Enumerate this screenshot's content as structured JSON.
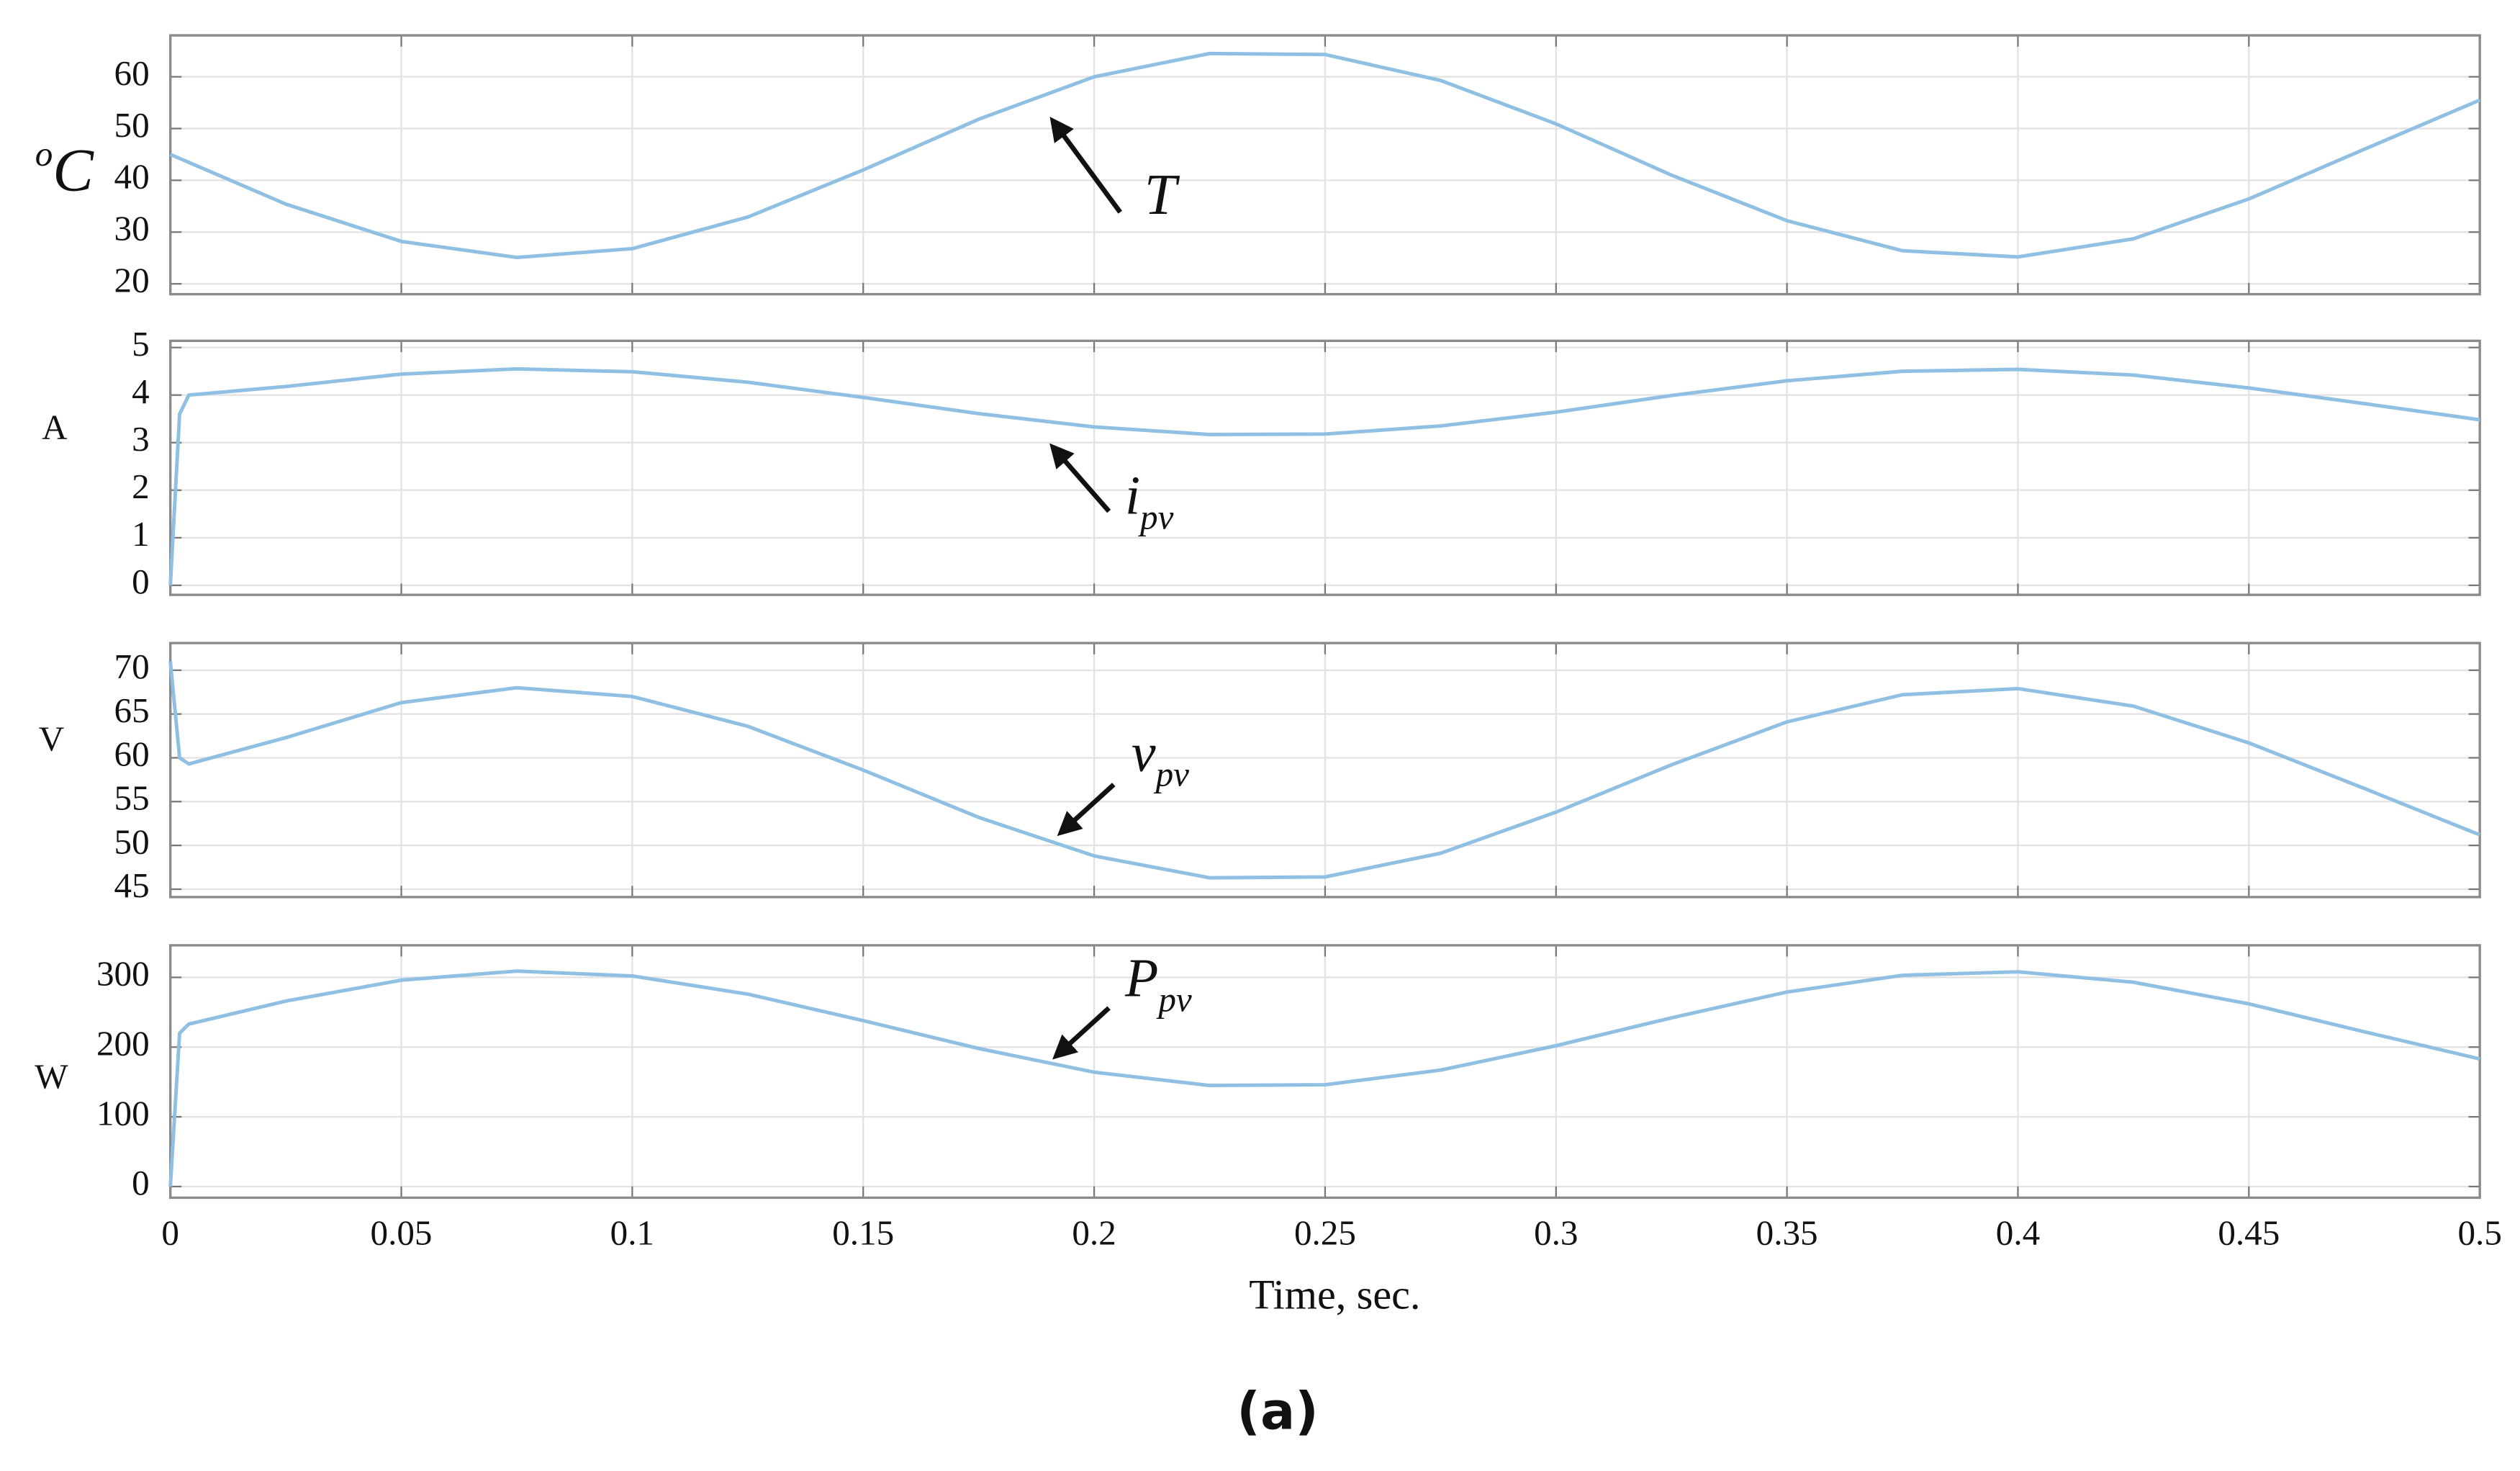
{
  "chart_data": [
    {
      "type": "line",
      "ylabel": {
        "sup": "o",
        "text": "C"
      },
      "annotation": {
        "text": "T"
      },
      "x": [
        0,
        0.025,
        0.05,
        0.075,
        0.1,
        0.125,
        0.15,
        0.175,
        0.2,
        0.225,
        0.25,
        0.275,
        0.3,
        0.325,
        0.35,
        0.375,
        0.4,
        0.425,
        0.45,
        0.475,
        0.5
      ],
      "series": [
        {
          "name": "T",
          "color": "#8fbfe2",
          "values": [
            45,
            35.4,
            28.2,
            25.1,
            26.8,
            32.9,
            42.0,
            51.8,
            60.0,
            64.5,
            64.3,
            59.3,
            50.9,
            41.0,
            32.2,
            26.4,
            25.2,
            28.7,
            36.4,
            46.0,
            55.5
          ]
        }
      ],
      "xlim": [
        0,
        0.5
      ],
      "xticks": [
        0,
        0.05,
        0.1,
        0.15,
        0.2,
        0.25,
        0.3,
        0.35,
        0.4,
        0.45,
        0.5
      ],
      "ylim": [
        18,
        68
      ],
      "yticks": [
        20,
        30,
        40,
        50,
        60
      ],
      "grid": true,
      "show_xtick_labels": false
    },
    {
      "type": "line",
      "ylabel": {
        "text": "A"
      },
      "annotation": {
        "text": "i",
        "sub": "pv"
      },
      "x": [
        0,
        0.002,
        0.004,
        0.025,
        0.05,
        0.075,
        0.1,
        0.125,
        0.15,
        0.175,
        0.2,
        0.225,
        0.25,
        0.275,
        0.3,
        0.325,
        0.35,
        0.375,
        0.4,
        0.425,
        0.45,
        0.475,
        0.5
      ],
      "series": [
        {
          "name": "ipv",
          "color": "#8fbfe2",
          "values": [
            0,
            3.6,
            4.0,
            4.18,
            4.44,
            4.55,
            4.49,
            4.27,
            3.95,
            3.61,
            3.33,
            3.17,
            3.18,
            3.35,
            3.64,
            3.99,
            4.3,
            4.5,
            4.54,
            4.42,
            4.15,
            3.82,
            3.48
          ]
        }
      ],
      "xlim": [
        0,
        0.5
      ],
      "xticks": [
        0,
        0.05,
        0.1,
        0.15,
        0.2,
        0.25,
        0.3,
        0.35,
        0.4,
        0.45,
        0.5
      ],
      "ylim": [
        -0.2,
        5.14
      ],
      "yticks": [
        0,
        1,
        2,
        3,
        4,
        5
      ],
      "grid": true,
      "show_xtick_labels": false
    },
    {
      "type": "line",
      "ylabel": {
        "text": "V"
      },
      "annotation": {
        "text": "v",
        "sub": "pv"
      },
      "x": [
        0,
        0.002,
        0.004,
        0.025,
        0.05,
        0.075,
        0.1,
        0.125,
        0.15,
        0.175,
        0.2,
        0.225,
        0.25,
        0.275,
        0.3,
        0.325,
        0.35,
        0.375,
        0.4,
        0.425,
        0.45,
        0.475,
        0.5
      ],
      "series": [
        {
          "name": "vpv",
          "color": "#8fbfe2",
          "values": [
            71,
            60,
            59.3,
            62.3,
            66.3,
            68.0,
            67.0,
            63.6,
            58.6,
            53.2,
            48.8,
            46.3,
            46.4,
            49.1,
            53.8,
            59.2,
            64.1,
            67.2,
            67.9,
            65.9,
            61.7,
            56.5,
            51.2
          ]
        }
      ],
      "xlim": [
        0,
        0.5
      ],
      "xticks": [
        0,
        0.05,
        0.1,
        0.15,
        0.2,
        0.25,
        0.3,
        0.35,
        0.4,
        0.45,
        0.5
      ],
      "ylim": [
        44.1,
        73.1
      ],
      "yticks": [
        45,
        50,
        55,
        60,
        65,
        70
      ],
      "grid": true,
      "show_xtick_labels": false
    },
    {
      "type": "line",
      "ylabel": {
        "text": "W"
      },
      "annotation": {
        "text": "P",
        "sub": "pv"
      },
      "xlabel": "Time, sec.",
      "x": [
        0,
        0.002,
        0.004,
        0.025,
        0.05,
        0.075,
        0.1,
        0.125,
        0.15,
        0.175,
        0.2,
        0.225,
        0.25,
        0.275,
        0.3,
        0.325,
        0.35,
        0.375,
        0.4,
        0.425,
        0.45,
        0.475,
        0.5
      ],
      "series": [
        {
          "name": "Ppv",
          "color": "#8fbfe2",
          "values": [
            0,
            220,
            233,
            266,
            296,
            309,
            302,
            276,
            238,
            198,
            164,
            145,
            146,
            167,
            202,
            242,
            279,
            303,
            308,
            293,
            262,
            222,
            183
          ]
        }
      ],
      "xlim": [
        0,
        0.5
      ],
      "xticks": [
        0,
        0.05,
        0.1,
        0.15,
        0.2,
        0.25,
        0.3,
        0.35,
        0.4,
        0.45,
        0.5
      ],
      "ylim": [
        -16,
        346
      ],
      "yticks": [
        0,
        100,
        200,
        300
      ],
      "grid": true,
      "show_xtick_labels": true
    }
  ],
  "caption": "(a)"
}
